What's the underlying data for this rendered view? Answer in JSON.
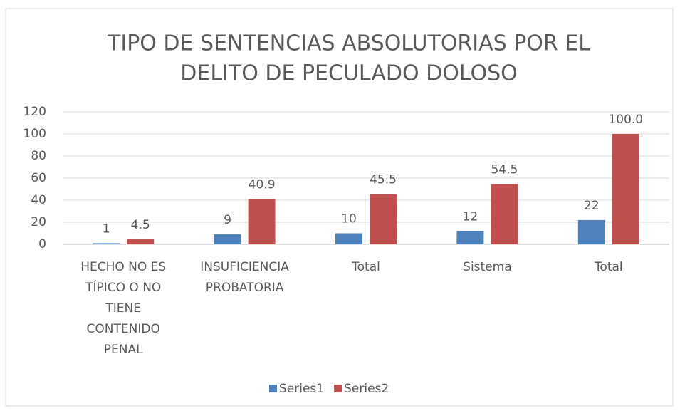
{
  "chart_data": {
    "type": "bar",
    "title": [
      "TIPO DE SENTENCIAS ABSOLUTORIAS POR EL",
      "DELITO DE PECULADO DOLOSO"
    ],
    "categories": [
      "HECHO NO ES TÍPICO O NO TIENE CONTENIDO PENAL",
      "INSUFICIENCIA PROBATORIA",
      "Total",
      "Sistema",
      "Total"
    ],
    "series": [
      {
        "name": "Series1",
        "color": "#4f81bd",
        "values": [
          1,
          9,
          10,
          12,
          22
        ]
      },
      {
        "name": "Series2",
        "color": "#c0504d",
        "values": [
          4.5,
          40.9,
          45.5,
          54.5,
          100
        ],
        "value_labels": [
          "4.5",
          "40.9",
          "45.5",
          "54.5",
          "100.0"
        ]
      }
    ],
    "ylim": [
      0,
      120
    ],
    "yticks": [
      0,
      20,
      40,
      60,
      80,
      100,
      120
    ],
    "grid": true,
    "legend": "bottom"
  }
}
